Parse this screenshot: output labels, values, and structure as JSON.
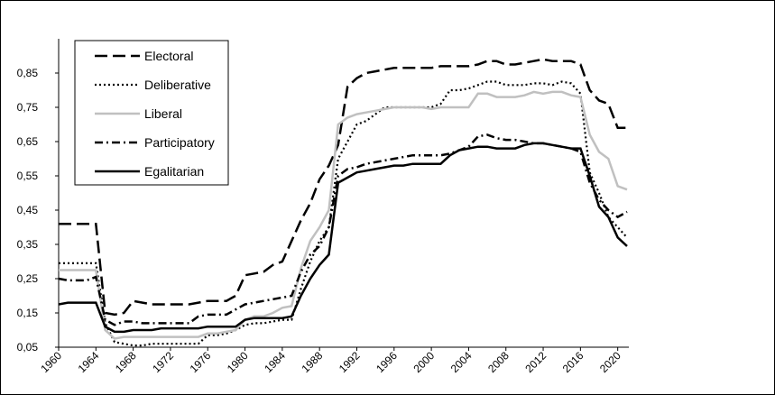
{
  "chart_data": {
    "type": "line",
    "x": [
      1960,
      1961,
      1962,
      1963,
      1964,
      1965,
      1966,
      1967,
      1968,
      1969,
      1970,
      1971,
      1972,
      1973,
      1974,
      1975,
      1976,
      1977,
      1978,
      1979,
      1980,
      1981,
      1982,
      1983,
      1984,
      1985,
      1986,
      1987,
      1988,
      1989,
      1990,
      1991,
      1992,
      1993,
      1994,
      1995,
      1996,
      1997,
      1998,
      1999,
      2000,
      2001,
      2002,
      2003,
      2004,
      2005,
      2006,
      2007,
      2008,
      2009,
      2010,
      2011,
      2012,
      2013,
      2014,
      2015,
      2016,
      2017,
      2018,
      2019,
      2020,
      2021
    ],
    "series": [
      {
        "name": "Electoral",
        "color": "#000000",
        "style": "dash",
        "values": [
          0.41,
          0.41,
          0.41,
          0.41,
          0.41,
          0.15,
          0.145,
          0.15,
          0.185,
          0.18,
          0.175,
          0.175,
          0.175,
          0.175,
          0.175,
          0.18,
          0.185,
          0.185,
          0.185,
          0.2,
          0.26,
          0.265,
          0.27,
          0.29,
          0.3,
          0.36,
          0.42,
          0.47,
          0.54,
          0.58,
          0.64,
          0.81,
          0.835,
          0.85,
          0.855,
          0.86,
          0.865,
          0.865,
          0.865,
          0.865,
          0.865,
          0.87,
          0.87,
          0.87,
          0.87,
          0.875,
          0.885,
          0.885,
          0.875,
          0.875,
          0.88,
          0.885,
          0.89,
          0.885,
          0.885,
          0.885,
          0.875,
          0.8,
          0.77,
          0.76,
          0.69,
          0.69
        ]
      },
      {
        "name": "Deliberative",
        "color": "#000000",
        "style": "dot",
        "values": [
          0.295,
          0.295,
          0.295,
          0.295,
          0.295,
          0.12,
          0.065,
          0.06,
          0.055,
          0.055,
          0.06,
          0.06,
          0.06,
          0.06,
          0.06,
          0.06,
          0.085,
          0.085,
          0.09,
          0.1,
          0.115,
          0.12,
          0.12,
          0.125,
          0.13,
          0.13,
          0.22,
          0.3,
          0.36,
          0.4,
          0.6,
          0.65,
          0.7,
          0.71,
          0.73,
          0.75,
          0.75,
          0.75,
          0.75,
          0.75,
          0.75,
          0.76,
          0.8,
          0.8,
          0.805,
          0.815,
          0.825,
          0.825,
          0.815,
          0.815,
          0.815,
          0.82,
          0.82,
          0.815,
          0.825,
          0.82,
          0.79,
          0.56,
          0.5,
          0.43,
          0.4,
          0.37
        ]
      },
      {
        "name": "Liberal",
        "color": "#c0c0c0",
        "style": "solid",
        "values": [
          0.275,
          0.275,
          0.275,
          0.275,
          0.275,
          0.1,
          0.075,
          0.08,
          0.08,
          0.08,
          0.08,
          0.08,
          0.08,
          0.08,
          0.08,
          0.08,
          0.09,
          0.09,
          0.095,
          0.1,
          0.13,
          0.14,
          0.14,
          0.15,
          0.165,
          0.17,
          0.28,
          0.36,
          0.4,
          0.45,
          0.7,
          0.72,
          0.73,
          0.735,
          0.74,
          0.745,
          0.75,
          0.75,
          0.75,
          0.75,
          0.745,
          0.75,
          0.75,
          0.75,
          0.75,
          0.79,
          0.79,
          0.78,
          0.78,
          0.78,
          0.785,
          0.795,
          0.79,
          0.795,
          0.795,
          0.785,
          0.78,
          0.67,
          0.62,
          0.6,
          0.52,
          0.51
        ]
      },
      {
        "name": "Participatory",
        "color": "#000000",
        "style": "dashdot",
        "values": [
          0.25,
          0.245,
          0.245,
          0.245,
          0.255,
          0.13,
          0.115,
          0.125,
          0.125,
          0.12,
          0.12,
          0.12,
          0.12,
          0.12,
          0.12,
          0.14,
          0.145,
          0.145,
          0.145,
          0.16,
          0.175,
          0.18,
          0.185,
          0.19,
          0.195,
          0.2,
          0.27,
          0.32,
          0.345,
          0.4,
          0.55,
          0.57,
          0.575,
          0.585,
          0.59,
          0.595,
          0.6,
          0.605,
          0.61,
          0.61,
          0.61,
          0.61,
          0.615,
          0.625,
          0.635,
          0.665,
          0.67,
          0.66,
          0.655,
          0.655,
          0.65,
          0.645,
          0.645,
          0.64,
          0.635,
          0.63,
          0.62,
          0.53,
          0.48,
          0.45,
          0.43,
          0.445
        ]
      },
      {
        "name": "Egalitarian",
        "color": "#000000",
        "style": "solid",
        "values": [
          0.175,
          0.18,
          0.18,
          0.18,
          0.18,
          0.11,
          0.095,
          0.095,
          0.1,
          0.1,
          0.1,
          0.105,
          0.105,
          0.105,
          0.105,
          0.105,
          0.11,
          0.11,
          0.11,
          0.11,
          0.13,
          0.135,
          0.135,
          0.135,
          0.135,
          0.14,
          0.2,
          0.25,
          0.29,
          0.32,
          0.53,
          0.545,
          0.56,
          0.565,
          0.57,
          0.575,
          0.58,
          0.58,
          0.585,
          0.585,
          0.585,
          0.585,
          0.61,
          0.625,
          0.63,
          0.635,
          0.635,
          0.63,
          0.63,
          0.63,
          0.64,
          0.645,
          0.645,
          0.64,
          0.635,
          0.63,
          0.63,
          0.55,
          0.46,
          0.43,
          0.37,
          0.345
        ]
      }
    ],
    "xlim": [
      1960,
      2021
    ],
    "xticks": [
      1960,
      1964,
      1968,
      1972,
      1976,
      1980,
      1984,
      1988,
      1992,
      1996,
      2000,
      2004,
      2008,
      2012,
      2016,
      2020
    ],
    "ylim": [
      0.05,
      0.95
    ],
    "yticks": [
      {
        "value": 0.05,
        "label": "0,05"
      },
      {
        "value": 0.15,
        "label": "0,15"
      },
      {
        "value": 0.25,
        "label": "0,25"
      },
      {
        "value": 0.35,
        "label": "0,35"
      },
      {
        "value": 0.45,
        "label": "0,45"
      },
      {
        "value": 0.55,
        "label": "0,55"
      },
      {
        "value": 0.65,
        "label": "0,65"
      },
      {
        "value": 0.75,
        "label": "0,75"
      },
      {
        "value": 0.85,
        "label": "0,85"
      }
    ],
    "legend": "top-left"
  }
}
